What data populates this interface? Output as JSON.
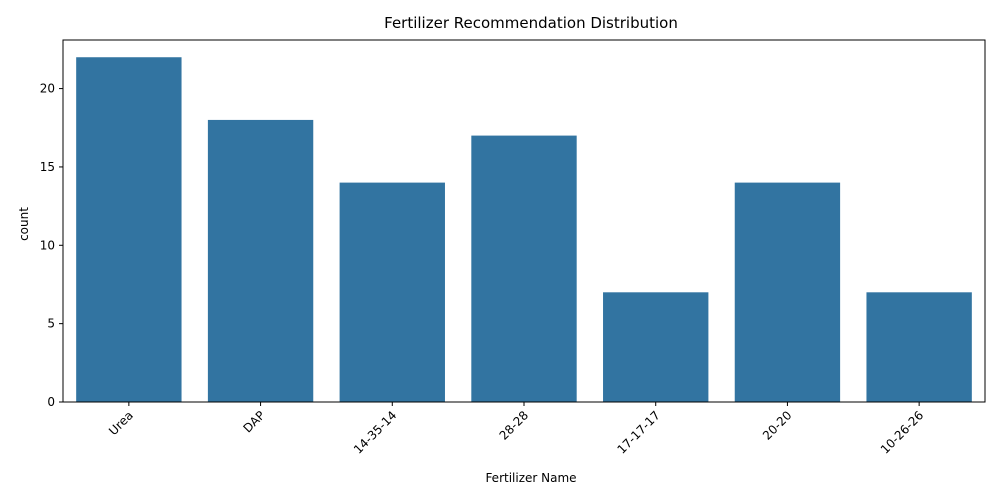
{
  "chart_data": {
    "type": "bar",
    "title": "Fertilizer Recommendation Distribution",
    "xlabel": "Fertilizer Name",
    "ylabel": "count",
    "categories": [
      "Urea",
      "DAP",
      "14-35-14",
      "28-28",
      "17-17-17",
      "20-20",
      "10-26-26"
    ],
    "values": [
      22,
      18,
      14,
      17,
      7,
      14,
      7
    ],
    "ylim": [
      0,
      23.1
    ],
    "yticks": [
      0,
      5,
      10,
      15,
      20
    ],
    "xtick_rotation": 45,
    "bar_color": "#3274a1",
    "grid": false,
    "legend": "none"
  }
}
